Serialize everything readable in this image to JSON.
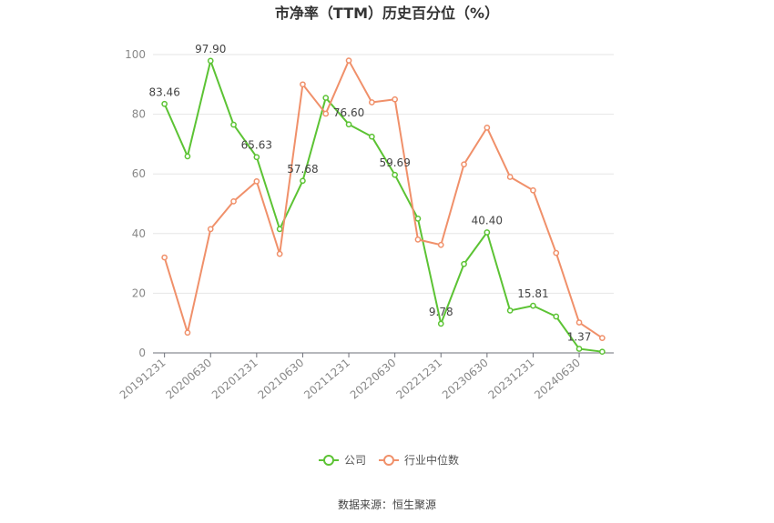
{
  "chart_data": {
    "type": "line",
    "title": "市净率（TTM）历史百分位（%）",
    "xlabel": "",
    "ylabel": "",
    "ylim": [
      0,
      100
    ],
    "yticks": [
      0,
      20,
      40,
      60,
      80,
      100
    ],
    "grid": true,
    "legend_position": "bottom",
    "categories": [
      "20191231",
      "20200331",
      "20200630",
      "20200930",
      "20201231",
      "20210331",
      "20210630",
      "20210930",
      "20211231",
      "20220331",
      "20220630",
      "20220930",
      "20221231",
      "20230331",
      "20230630",
      "20230930",
      "20231231",
      "20240331",
      "20240630",
      "20240930"
    ],
    "x_tick_labels": [
      "20191231",
      "20200630",
      "20201231",
      "20210630",
      "20211231",
      "20220630",
      "20221231",
      "20230630",
      "20231231",
      "20240630"
    ],
    "series": [
      {
        "name": "公司",
        "color": "#5cc334",
        "values": [
          83.46,
          65.9,
          97.9,
          76.5,
          65.63,
          41.5,
          57.68,
          85.5,
          76.6,
          72.5,
          59.69,
          45.0,
          9.78,
          29.8,
          40.4,
          14.2,
          15.81,
          12.2,
          1.37,
          0.4
        ],
        "labels": [
          "83.46",
          null,
          "97.90",
          null,
          "65.63",
          null,
          "57.68",
          null,
          "76.60",
          null,
          "59.69",
          null,
          "9.78",
          null,
          "40.40",
          null,
          "15.81",
          null,
          "1.37",
          null
        ]
      },
      {
        "name": "行业中位数",
        "color": "#f0906a",
        "values": [
          32.0,
          6.8,
          41.5,
          50.8,
          57.5,
          33.2,
          90.0,
          80.2,
          98.0,
          84.0,
          85.0,
          38.0,
          36.2,
          63.2,
          75.5,
          59.0,
          54.5,
          33.5,
          10.2,
          5.0
        ]
      }
    ]
  },
  "source_text": "数据来源：恒生聚源"
}
